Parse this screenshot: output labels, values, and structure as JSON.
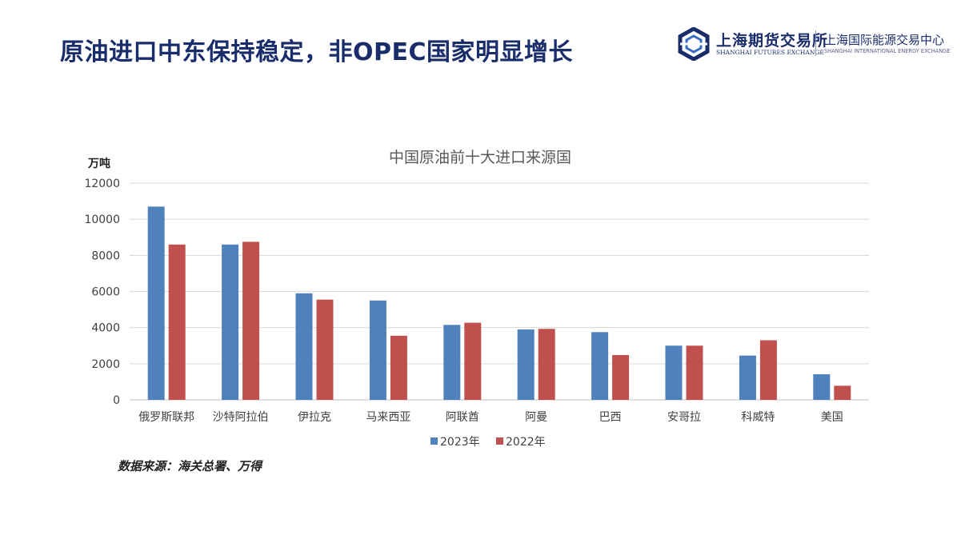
{
  "slide_title": "原油进口中东保持稳定，非OPEC国家明显增长",
  "logo": {
    "cn": "上海期货交易所",
    "en": "SHANGHAI FUTURES EXCHANGE",
    "cn2": "上海国际能源交易中心",
    "en2": "SHANGHAI INTERNATIONAL ENERGY EXCHANGE",
    "icon": "hexagon-emblem-icon",
    "color": "#1a2d6b"
  },
  "source_note": "数据来源：海关总署、万得",
  "chart_data": {
    "type": "bar",
    "title": "中国原油前十大进口来源国",
    "ylabel": "万吨",
    "xlabel": "",
    "ylim": [
      0,
      12000
    ],
    "yticks": [
      0,
      2000,
      4000,
      6000,
      8000,
      10000,
      12000
    ],
    "categories": [
      "俄罗斯联邦",
      "沙特阿拉伯",
      "伊拉克",
      "马来西亚",
      "阿联酋",
      "阿曼",
      "巴西",
      "安哥拉",
      "科威特",
      "美国"
    ],
    "series": [
      {
        "name": "2023年",
        "color": "#4f81bd",
        "values": [
          10700,
          8600,
          5900,
          5500,
          4150,
          3900,
          3750,
          3000,
          2450,
          1420
        ]
      },
      {
        "name": "2022年",
        "color": "#c0504d",
        "values": [
          8600,
          8750,
          5550,
          3550,
          4270,
          3930,
          2480,
          3000,
          3300,
          780
        ]
      }
    ],
    "grid": true,
    "legend": "bottom"
  }
}
